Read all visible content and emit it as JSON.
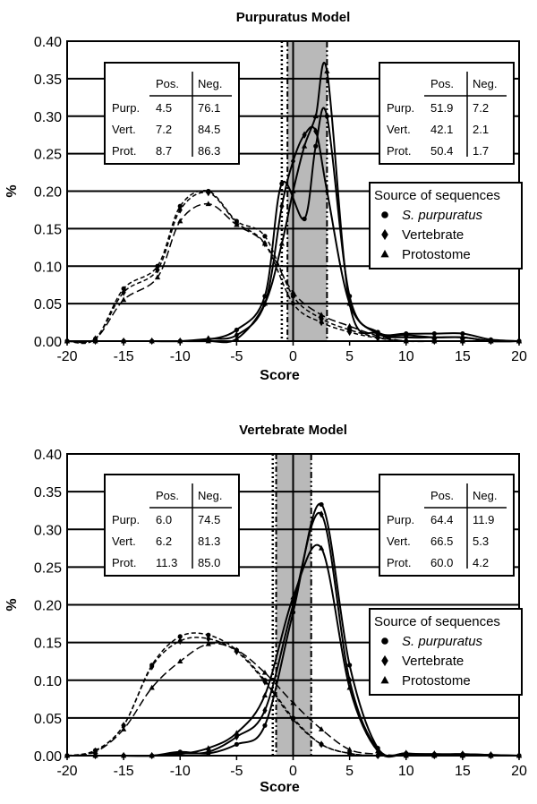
{
  "chart_data": [
    {
      "type": "line",
      "title": "Purpuratus Model",
      "xlabel": "Score",
      "ylabel": "%",
      "xlim": [
        -20,
        20
      ],
      "ylim": [
        0,
        0.4
      ],
      "x_ticks": [
        "-20",
        "-15",
        "-10",
        "-5",
        "0",
        "5",
        "10",
        "15",
        "20"
      ],
      "y_ticks": [
        "0.00",
        "0.05",
        "0.10",
        "0.15",
        "0.20",
        "0.25",
        "0.30",
        "0.35",
        "0.40"
      ],
      "grid": "horizontal",
      "threshold_band": [
        -0.5,
        3
      ],
      "threshold_lines": [
        -1,
        -0.5,
        0,
        3
      ],
      "legend": {
        "title": "Source of sequences",
        "placement": "right",
        "items": [
          {
            "label": "S. purpuratus",
            "italic": true,
            "marker": "circle"
          },
          {
            "label": "Vertebrate",
            "italic": false,
            "marker": "diamond"
          },
          {
            "label": "Protostome",
            "italic": false,
            "marker": "triangle"
          }
        ]
      },
      "tables": [
        {
          "placement": "left",
          "header": [
            "",
            "Pos.",
            "Neg."
          ],
          "rows": [
            [
              "Purp.",
              "4.5",
              "76.1"
            ],
            [
              "Vert.",
              "7.2",
              "84.5"
            ],
            [
              "Prot.",
              "8.7",
              "86.3"
            ]
          ]
        },
        {
          "placement": "right",
          "header": [
            "",
            "Pos.",
            "Neg."
          ],
          "rows": [
            [
              "Purp.",
              "51.9",
              "7.2"
            ],
            [
              "Vert.",
              "42.1",
              "2.1"
            ],
            [
              "Prot.",
              "50.4",
              "1.7"
            ]
          ]
        }
      ],
      "series": [
        {
          "group": "negative",
          "marker": "circle",
          "dash": "5,3",
          "x": [
            -20,
            -17.5,
            -15,
            -12,
            -10,
            -7.5,
            -5,
            -2.5,
            0,
            2.5,
            5,
            7.5,
            10,
            12.5,
            15,
            17.5,
            20
          ],
          "y": [
            0,
            0.003,
            0.07,
            0.1,
            0.18,
            0.2,
            0.16,
            0.14,
            0.06,
            0.03,
            0.015,
            0.005,
            0,
            0,
            0,
            0,
            0
          ]
        },
        {
          "group": "negative",
          "marker": "diamond",
          "dash": "5,3",
          "x": [
            -20,
            -17.5,
            -15,
            -12,
            -10,
            -7.5,
            -5,
            -2.5,
            0,
            2.5,
            5,
            7.5,
            10,
            12.5,
            15,
            17.5,
            20
          ],
          "y": [
            0,
            0.003,
            0.065,
            0.095,
            0.175,
            0.198,
            0.158,
            0.13,
            0.05,
            0.025,
            0.012,
            0.004,
            0,
            0,
            0,
            0,
            0
          ]
        },
        {
          "group": "negative",
          "marker": "triangle",
          "dash": "9,4",
          "x": [
            -20,
            -17.5,
            -15,
            -12,
            -10,
            -7.5,
            -5,
            -2.5,
            0,
            2.5,
            5,
            7.5,
            10,
            12.5,
            15,
            17.5,
            20
          ],
          "y": [
            0,
            0.003,
            0.055,
            0.085,
            0.16,
            0.183,
            0.155,
            0.13,
            0.065,
            0.035,
            0.02,
            0.007,
            0,
            0,
            0,
            0,
            0
          ]
        },
        {
          "group": "positive",
          "marker": "circle",
          "dash": "",
          "x": [
            -20,
            -17.5,
            -15,
            -12.5,
            -10,
            -7.5,
            -5,
            -2.5,
            -1,
            1,
            2,
            3,
            5,
            7.5,
            10,
            12.5,
            15,
            17.5,
            20
          ],
          "y": [
            0,
            0,
            0,
            0,
            0,
            0.002,
            0.015,
            0.06,
            0.21,
            0.163,
            0.26,
            0.3,
            0.06,
            0.012,
            0.01,
            0.01,
            0.01,
            0.002,
            0
          ]
        },
        {
          "group": "positive",
          "marker": "diamond",
          "dash": "",
          "x": [
            -20,
            -17.5,
            -15,
            -12.5,
            -10,
            -7.5,
            -5,
            -2.5,
            -1,
            0,
            1,
            2,
            3,
            5,
            7.5,
            10,
            12.5,
            15,
            17.5,
            20
          ],
          "y": [
            0,
            0,
            0,
            0,
            0,
            0.003,
            0.008,
            0.05,
            0.18,
            0.24,
            0.275,
            0.28,
            0.2,
            0.05,
            0.01,
            0.005,
            0.005,
            0.005,
            0,
            0
          ]
        },
        {
          "group": "positive",
          "marker": "triangle",
          "dash": "",
          "x": [
            -20,
            -17.5,
            -15,
            -12.5,
            -10,
            -7.5,
            -5,
            -2.5,
            -1,
            0,
            1,
            2,
            3,
            5,
            7.5,
            10,
            12.5,
            15,
            17.5,
            20
          ],
          "y": [
            0,
            0,
            0,
            0,
            0,
            0,
            0.003,
            0.05,
            0.13,
            0.2,
            0.26,
            0.3,
            0.36,
            0.05,
            0.01,
            0.008,
            0.005,
            0.005,
            0,
            0
          ]
        }
      ]
    },
    {
      "type": "line",
      "title": "Vertebrate Model",
      "xlabel": "Score",
      "ylabel": "%",
      "xlim": [
        -20,
        20
      ],
      "ylim": [
        0,
        0.4
      ],
      "x_ticks": [
        "-20",
        "-15",
        "-10",
        "-5",
        "0",
        "5",
        "10",
        "15",
        "20"
      ],
      "y_ticks": [
        "0.00",
        "0.05",
        "0.10",
        "0.15",
        "0.20",
        "0.25",
        "0.30",
        "0.35",
        "0.40"
      ],
      "grid": "horizontal",
      "threshold_band": [
        -1.5,
        1.6
      ],
      "threshold_lines": [
        -1.8,
        -1.5,
        0,
        1.6
      ],
      "legend": {
        "title": "Source of sequences",
        "placement": "right",
        "items": [
          {
            "label": "S. purpuratus",
            "italic": true,
            "marker": "circle"
          },
          {
            "label": "Vertebrate",
            "italic": false,
            "marker": "diamond"
          },
          {
            "label": "Protostome",
            "italic": false,
            "marker": "triangle"
          }
        ]
      },
      "tables": [
        {
          "placement": "left",
          "header": [
            "",
            "Pos.",
            "Neg."
          ],
          "rows": [
            [
              "Purp.",
              "6.0",
              "74.5"
            ],
            [
              "Vert.",
              "6.2",
              "81.3"
            ],
            [
              "Prot.",
              "11.3",
              "85.0"
            ]
          ]
        },
        {
          "placement": "right",
          "header": [
            "",
            "Pos.",
            "Neg."
          ],
          "rows": [
            [
              "Purp.",
              "64.4",
              "11.9"
            ],
            [
              "Vert.",
              "66.5",
              "5.3"
            ],
            [
              "Prot.",
              "60.0",
              "4.2"
            ]
          ]
        }
      ],
      "series": [
        {
          "group": "negative",
          "marker": "circle",
          "dash": "5,3",
          "x": [
            -20,
            -17.5,
            -15,
            -12.5,
            -10,
            -7.5,
            -5,
            -2.5,
            0,
            2.5,
            5,
            7.5,
            10,
            12.5,
            15,
            17.5,
            20
          ],
          "y": [
            0,
            0.007,
            0.04,
            0.12,
            0.158,
            0.16,
            0.14,
            0.1,
            0.05,
            0.015,
            0.003,
            0,
            0,
            0,
            0,
            0,
            0
          ]
        },
        {
          "group": "negative",
          "marker": "diamond",
          "dash": "5,3",
          "x": [
            -20,
            -17.5,
            -15,
            -12.5,
            -10,
            -7.5,
            -5,
            -2.5,
            0,
            2.5,
            5,
            7.5,
            10,
            12.5,
            15,
            17.5,
            20
          ],
          "y": [
            0,
            0.006,
            0.04,
            0.118,
            0.152,
            0.155,
            0.138,
            0.098,
            0.048,
            0.015,
            0.003,
            0,
            0,
            0,
            0,
            0,
            0
          ]
        },
        {
          "group": "negative",
          "marker": "triangle",
          "dash": "9,4",
          "x": [
            -20,
            -17.5,
            -15,
            -12.5,
            -10,
            -7.5,
            -5,
            -2.5,
            0,
            2.5,
            5,
            7.5,
            10,
            12.5,
            15,
            17.5,
            20
          ],
          "y": [
            0,
            0.005,
            0.035,
            0.09,
            0.125,
            0.148,
            0.14,
            0.11,
            0.07,
            0.035,
            0.008,
            0.002,
            0,
            0,
            0,
            0,
            0
          ]
        },
        {
          "group": "positive",
          "marker": "circle",
          "dash": "",
          "x": [
            -20,
            -17.5,
            -15,
            -12.5,
            -10,
            -7.5,
            -5,
            -2.5,
            0,
            2.5,
            5,
            7.5,
            10,
            12.5,
            15,
            17.5,
            20
          ],
          "y": [
            0,
            0,
            0,
            0,
            0.005,
            0.003,
            0.015,
            0.04,
            0.19,
            0.333,
            0.12,
            0.01,
            0.003,
            0.002,
            0.002,
            0.001,
            0
          ]
        },
        {
          "group": "positive",
          "marker": "diamond",
          "dash": "",
          "x": [
            -20,
            -17.5,
            -15,
            -12.5,
            -10,
            -7.5,
            -5,
            -2.5,
            0,
            2.5,
            5,
            7.5,
            10,
            12.5,
            15,
            17.5,
            20
          ],
          "y": [
            0,
            0,
            0,
            0,
            0.003,
            0.005,
            0.025,
            0.06,
            0.2,
            0.32,
            0.1,
            0.008,
            0.003,
            0.002,
            0.002,
            0.001,
            0
          ]
        },
        {
          "group": "positive",
          "marker": "triangle",
          "dash": "",
          "x": [
            -20,
            -17.5,
            -15,
            -12.5,
            -10,
            -7.5,
            -5,
            -2.5,
            0,
            2.5,
            5,
            7.5,
            10,
            12.5,
            15,
            17.5,
            20
          ],
          "y": [
            0,
            0,
            0,
            0,
            0.002,
            0.01,
            0.03,
            0.08,
            0.21,
            0.275,
            0.09,
            0.006,
            0.002,
            0.001,
            0.001,
            0,
            0
          ]
        }
      ]
    }
  ]
}
